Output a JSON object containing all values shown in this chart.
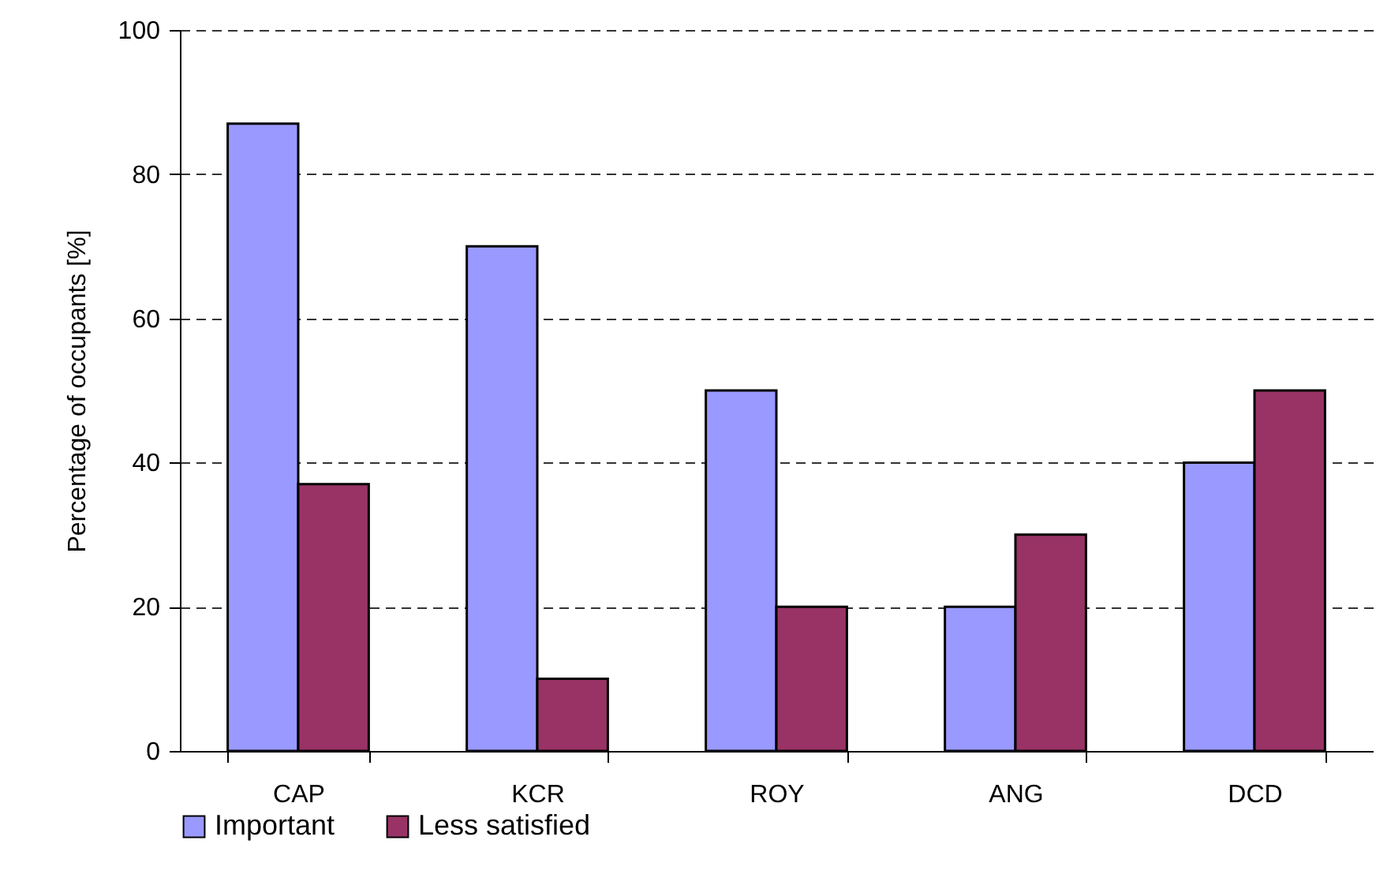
{
  "chart_data": {
    "type": "bar",
    "ylabel": "Percentage of occupants [%]",
    "categories": [
      "CAP",
      "KCR",
      "ROY",
      "ANG",
      "DCD"
    ],
    "series": [
      {
        "name": "Important",
        "color": "#9999ff",
        "values": [
          87,
          70,
          50,
          20,
          40
        ]
      },
      {
        "name": "Less satisfied",
        "color": "#993366",
        "values": [
          37,
          10,
          20,
          30,
          50
        ]
      }
    ],
    "ylim": [
      0,
      100
    ],
    "yticks": [
      0,
      20,
      40,
      60,
      80,
      100
    ],
    "grid": "y",
    "legend": "bottom"
  }
}
